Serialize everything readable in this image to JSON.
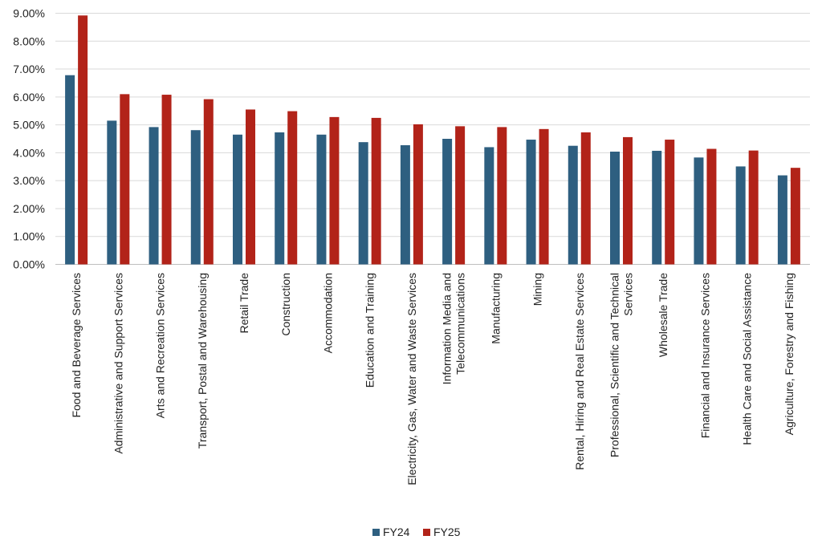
{
  "chart_data": {
    "type": "bar",
    "categories": [
      [
        "Food and Beverage Services"
      ],
      [
        "Administrative and Support Services"
      ],
      [
        "Arts and Recreation Services"
      ],
      [
        "Transport, Postal and Warehousing"
      ],
      [
        "Retail Trade"
      ],
      [
        "Construction"
      ],
      [
        "Accommodation"
      ],
      [
        "Education and Training"
      ],
      [
        "Electricity, Gas, Water and Waste Services"
      ],
      [
        "Information Media and",
        "Telecommunications"
      ],
      [
        "Manufacturing"
      ],
      [
        "Mining"
      ],
      [
        "Rental, Hiring and Real Estate Services"
      ],
      [
        "Professional, Scientific and Technical",
        "Services"
      ],
      [
        "Wholesale Trade"
      ],
      [
        "Financial and Insurance Services"
      ],
      [
        "Health Care and Social Assistance"
      ],
      [
        "Agriculture, Forestry and Fishing"
      ]
    ],
    "series": [
      {
        "name": "FY24",
        "color": "#2e5f80",
        "values": [
          6.78,
          5.15,
          4.92,
          4.81,
          4.65,
          4.73,
          4.65,
          4.38,
          4.27,
          4.5,
          4.2,
          4.47,
          4.25,
          4.04,
          4.07,
          3.83,
          3.51,
          3.19
        ]
      },
      {
        "name": "FY25",
        "color": "#b22319",
        "values": [
          8.92,
          6.1,
          6.08,
          5.92,
          5.55,
          5.49,
          5.28,
          5.25,
          5.02,
          4.95,
          4.92,
          4.85,
          4.73,
          4.56,
          4.47,
          4.14,
          4.08,
          3.46
        ]
      }
    ],
    "y_ticks": [
      "0.00%",
      "1.00%",
      "2.00%",
      "3.00%",
      "4.00%",
      "5.00%",
      "6.00%",
      "7.00%",
      "8.00%",
      "9.00%"
    ],
    "ylim": [
      0,
      9
    ],
    "title": "",
    "xlabel": "",
    "ylabel": "",
    "grid": true,
    "legend_position": "bottom"
  }
}
